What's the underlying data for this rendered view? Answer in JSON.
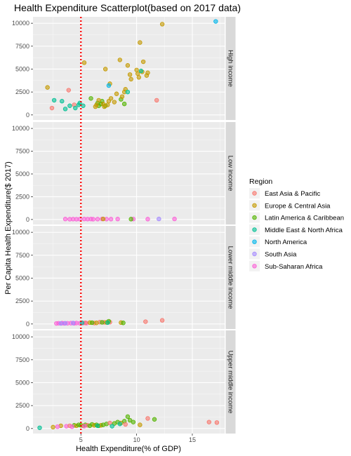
{
  "chart_data": {
    "type": "scatter",
    "title": "Health Expenditure Scatterplot(based on 2017 data)",
    "xlabel": "Health Expenditure(% of GDP)",
    "ylabel": "Per Capita Health Expenditure($ 2017)",
    "xlim": [
      0.7,
      17.9
    ],
    "ylim": [
      -550,
      10700
    ],
    "x_ticks": [
      5,
      10,
      15
    ],
    "y_ticks": [
      0,
      2500,
      5000,
      7500,
      10000
    ],
    "y_tick_labels": [
      "0",
      "2500",
      "5000",
      "7500",
      "10000"
    ],
    "x_tick_labels": [
      "5",
      "10",
      "15"
    ],
    "reference_line": {
      "x": 5,
      "color": "#ff0000",
      "style": "dotted"
    },
    "grid": true,
    "legend": {
      "title": "Region",
      "position": "right",
      "entries": [
        {
          "name": "East Asia & Pacific",
          "color": "#F8766D"
        },
        {
          "name": "Europe & Central Asia",
          "color": "#C49A00"
        },
        {
          "name": "Latin America & Caribbean",
          "color": "#53B400"
        },
        {
          "name": "Middle East & North Africa",
          "color": "#00C094"
        },
        {
          "name": "North America",
          "color": "#00B6EB"
        },
        {
          "name": "South Asia",
          "color": "#A58AFF"
        },
        {
          "name": "Sub-Saharan Africa",
          "color": "#FB61D7"
        }
      ]
    },
    "facets": [
      {
        "label": "High income",
        "points": [
          {
            "x": 17.1,
            "y": 10200,
            "r": 4
          },
          {
            "x": 12.3,
            "y": 9900,
            "r": 1
          },
          {
            "x": 10.3,
            "y": 7900,
            "r": 1
          },
          {
            "x": 8.5,
            "y": 6000,
            "r": 1
          },
          {
            "x": 5.3,
            "y": 5700,
            "r": 1
          },
          {
            "x": 10.6,
            "y": 5800,
            "r": 1
          },
          {
            "x": 7.2,
            "y": 5000,
            "r": 1
          },
          {
            "x": 9.2,
            "y": 5400,
            "r": 1
          },
          {
            "x": 10.0,
            "y": 4900,
            "r": 1
          },
          {
            "x": 10.5,
            "y": 4700,
            "r": 1
          },
          {
            "x": 10.1,
            "y": 4500,
            "r": 1
          },
          {
            "x": 10.4,
            "y": 4800,
            "r": 3
          },
          {
            "x": 11.0,
            "y": 4600,
            "r": 1
          },
          {
            "x": 9.4,
            "y": 4400,
            "r": 1
          },
          {
            "x": 10.9,
            "y": 4300,
            "r": 1
          },
          {
            "x": 10.2,
            "y": 4100,
            "r": 1
          },
          {
            "x": 9.5,
            "y": 3900,
            "r": 1
          },
          {
            "x": 7.6,
            "y": 3400,
            "r": 1
          },
          {
            "x": 7.5,
            "y": 3200,
            "r": 4
          },
          {
            "x": 9.0,
            "y": 2800,
            "r": 1
          },
          {
            "x": 8.9,
            "y": 2500,
            "r": 1
          },
          {
            "x": 9.2,
            "y": 2500,
            "r": 3
          },
          {
            "x": 8.2,
            "y": 2300,
            "r": 1
          },
          {
            "x": 2.0,
            "y": 3000,
            "r": 1
          },
          {
            "x": 3.9,
            "y": 2700,
            "r": 0
          },
          {
            "x": 11.8,
            "y": 1600,
            "r": 0
          },
          {
            "x": 2.4,
            "y": 750,
            "r": 0
          },
          {
            "x": 4.4,
            "y": 1100,
            "r": 0
          },
          {
            "x": 4.5,
            "y": 750,
            "r": 3
          },
          {
            "x": 3.3,
            "y": 1500,
            "r": 3
          },
          {
            "x": 3.6,
            "y": 650,
            "r": 3
          },
          {
            "x": 4.0,
            "y": 1000,
            "r": 3
          },
          {
            "x": 4.8,
            "y": 1100,
            "r": 3
          },
          {
            "x": 4.9,
            "y": 1300,
            "r": 3
          },
          {
            "x": 5.2,
            "y": 1000,
            "r": 3
          },
          {
            "x": 2.6,
            "y": 1600,
            "r": 3
          },
          {
            "x": 5.9,
            "y": 1800,
            "r": 2
          },
          {
            "x": 6.5,
            "y": 1300,
            "r": 2
          },
          {
            "x": 6.9,
            "y": 1500,
            "r": 2
          },
          {
            "x": 7.2,
            "y": 1000,
            "r": 2
          },
          {
            "x": 6.6,
            "y": 1000,
            "r": 2
          },
          {
            "x": 6.8,
            "y": 1200,
            "r": 2
          },
          {
            "x": 8.6,
            "y": 1700,
            "r": 2
          },
          {
            "x": 8.9,
            "y": 1200,
            "r": 2
          },
          {
            "x": 6.4,
            "y": 1100,
            "r": 1
          },
          {
            "x": 6.6,
            "y": 1600,
            "r": 1
          },
          {
            "x": 7.0,
            "y": 1200,
            "r": 1
          },
          {
            "x": 7.4,
            "y": 1100,
            "r": 1
          },
          {
            "x": 7.5,
            "y": 1500,
            "r": 1
          },
          {
            "x": 7.7,
            "y": 1800,
            "r": 1
          },
          {
            "x": 8.0,
            "y": 1400,
            "r": 1
          },
          {
            "x": 7.1,
            "y": 900,
            "r": 1
          },
          {
            "x": 6.3,
            "y": 900,
            "r": 1
          },
          {
            "x": 8.7,
            "y": 2000,
            "r": 1
          }
        ]
      },
      {
        "label": "Low income",
        "points": [
          {
            "x": 3.6,
            "y": 50,
            "r": 6
          },
          {
            "x": 4.0,
            "y": 30,
            "r": 6
          },
          {
            "x": 4.3,
            "y": 40,
            "r": 6
          },
          {
            "x": 4.6,
            "y": 30,
            "r": 6
          },
          {
            "x": 4.9,
            "y": 40,
            "r": 6
          },
          {
            "x": 5.3,
            "y": 50,
            "r": 6
          },
          {
            "x": 5.6,
            "y": 40,
            "r": 6
          },
          {
            "x": 5.9,
            "y": 50,
            "r": 6
          },
          {
            "x": 6.1,
            "y": 30,
            "r": 6
          },
          {
            "x": 6.5,
            "y": 40,
            "r": 6
          },
          {
            "x": 6.9,
            "y": 60,
            "r": 6
          },
          {
            "x": 7.3,
            "y": 40,
            "r": 6
          },
          {
            "x": 7.7,
            "y": 40,
            "r": 6
          },
          {
            "x": 8.3,
            "y": 50,
            "r": 6
          },
          {
            "x": 9.7,
            "y": 50,
            "r": 6
          },
          {
            "x": 11.0,
            "y": 40,
            "r": 6
          },
          {
            "x": 12.0,
            "y": 60,
            "r": 5
          },
          {
            "x": 13.4,
            "y": 60,
            "r": 6
          },
          {
            "x": 7.0,
            "y": 60,
            "r": 1
          },
          {
            "x": 9.5,
            "y": 40,
            "r": 2
          }
        ]
      },
      {
        "label": "Lower middle income",
        "points": [
          {
            "x": 2.8,
            "y": 60,
            "r": 6
          },
          {
            "x": 3.0,
            "y": 80,
            "r": 6
          },
          {
            "x": 3.3,
            "y": 90,
            "r": 6
          },
          {
            "x": 3.5,
            "y": 70,
            "r": 6
          },
          {
            "x": 3.8,
            "y": 80,
            "r": 6
          },
          {
            "x": 4.1,
            "y": 90,
            "r": 6
          },
          {
            "x": 4.4,
            "y": 70,
            "r": 6
          },
          {
            "x": 4.6,
            "y": 100,
            "r": 6
          },
          {
            "x": 4.9,
            "y": 80,
            "r": 6
          },
          {
            "x": 5.2,
            "y": 100,
            "r": 6
          },
          {
            "x": 5.5,
            "y": 90,
            "r": 6
          },
          {
            "x": 3.2,
            "y": 60,
            "r": 5
          },
          {
            "x": 3.6,
            "y": 80,
            "r": 5
          },
          {
            "x": 4.3,
            "y": 100,
            "r": 5
          },
          {
            "x": 5.4,
            "y": 120,
            "r": 0
          },
          {
            "x": 6.2,
            "y": 100,
            "r": 0
          },
          {
            "x": 6.7,
            "y": 200,
            "r": 0
          },
          {
            "x": 7.1,
            "y": 180,
            "r": 0
          },
          {
            "x": 7.6,
            "y": 200,
            "r": 0
          },
          {
            "x": 10.8,
            "y": 250,
            "r": 0
          },
          {
            "x": 12.3,
            "y": 400,
            "r": 0
          },
          {
            "x": 5.8,
            "y": 150,
            "r": 1
          },
          {
            "x": 6.4,
            "y": 120,
            "r": 1
          },
          {
            "x": 7.3,
            "y": 170,
            "r": 1
          },
          {
            "x": 8.6,
            "y": 150,
            "r": 1
          },
          {
            "x": 6.0,
            "y": 140,
            "r": 2
          },
          {
            "x": 6.9,
            "y": 180,
            "r": 2
          },
          {
            "x": 7.5,
            "y": 300,
            "r": 2
          },
          {
            "x": 8.8,
            "y": 120,
            "r": 2
          },
          {
            "x": 5.1,
            "y": 130,
            "r": 3
          },
          {
            "x": 7.4,
            "y": 150,
            "r": 3
          }
        ]
      },
      {
        "label": "Upper middle income",
        "points": [
          {
            "x": 1.3,
            "y": 80,
            "r": 3
          },
          {
            "x": 2.5,
            "y": 150,
            "r": 1
          },
          {
            "x": 3.2,
            "y": 300,
            "r": 1
          },
          {
            "x": 3.7,
            "y": 250,
            "r": 6
          },
          {
            "x": 4.0,
            "y": 300,
            "r": 0
          },
          {
            "x": 4.4,
            "y": 350,
            "r": 2
          },
          {
            "x": 4.6,
            "y": 300,
            "r": 1
          },
          {
            "x": 4.8,
            "y": 400,
            "r": 2
          },
          {
            "x": 5.0,
            "y": 350,
            "r": 2
          },
          {
            "x": 5.2,
            "y": 300,
            "r": 1
          },
          {
            "x": 5.4,
            "y": 400,
            "r": 2
          },
          {
            "x": 5.6,
            "y": 350,
            "r": 0
          },
          {
            "x": 5.8,
            "y": 300,
            "r": 2
          },
          {
            "x": 6.0,
            "y": 450,
            "r": 2
          },
          {
            "x": 6.2,
            "y": 350,
            "r": 1
          },
          {
            "x": 6.4,
            "y": 400,
            "r": 2
          },
          {
            "x": 6.6,
            "y": 300,
            "r": 2
          },
          {
            "x": 6.8,
            "y": 350,
            "r": 1
          },
          {
            "x": 7.0,
            "y": 400,
            "r": 2
          },
          {
            "x": 7.3,
            "y": 500,
            "r": 2
          },
          {
            "x": 7.6,
            "y": 600,
            "r": 0
          },
          {
            "x": 8.0,
            "y": 550,
            "r": 2
          },
          {
            "x": 8.3,
            "y": 700,
            "r": 2
          },
          {
            "x": 8.6,
            "y": 600,
            "r": 1
          },
          {
            "x": 8.9,
            "y": 800,
            "r": 2
          },
          {
            "x": 9.2,
            "y": 1300,
            "r": 2
          },
          {
            "x": 9.4,
            "y": 900,
            "r": 2
          },
          {
            "x": 9.7,
            "y": 700,
            "r": 2
          },
          {
            "x": 10.3,
            "y": 400,
            "r": 1
          },
          {
            "x": 11.0,
            "y": 1100,
            "r": 0
          },
          {
            "x": 11.6,
            "y": 1000,
            "r": 2
          },
          {
            "x": 16.5,
            "y": 700,
            "r": 0
          },
          {
            "x": 17.2,
            "y": 650,
            "r": 0
          },
          {
            "x": 2.9,
            "y": 200,
            "r": 6
          },
          {
            "x": 5.3,
            "y": 250,
            "r": 6
          },
          {
            "x": 6.5,
            "y": 300,
            "r": 3
          },
          {
            "x": 7.8,
            "y": 250,
            "r": 3
          },
          {
            "x": 4.2,
            "y": 200,
            "r": 6
          },
          {
            "x": 8.5,
            "y": 500,
            "r": 3
          },
          {
            "x": 9.0,
            "y": 450,
            "r": 0
          }
        ]
      }
    ]
  }
}
